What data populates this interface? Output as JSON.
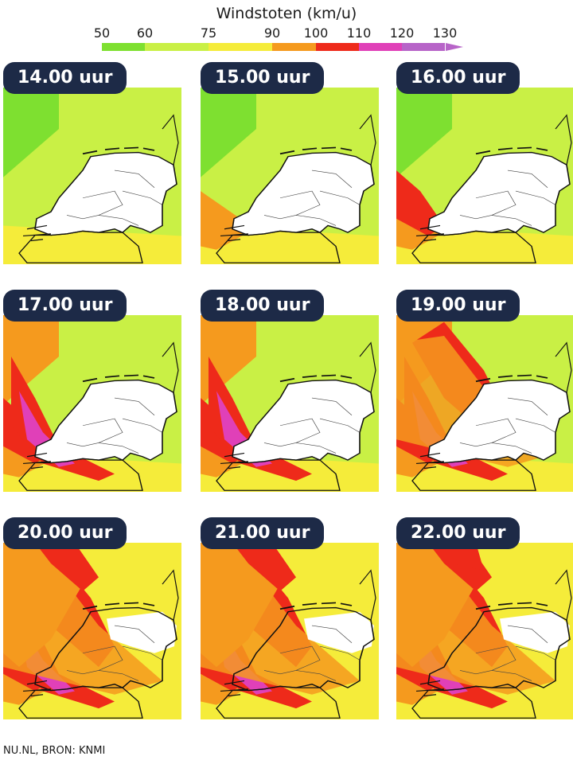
{
  "legend": {
    "title": "Windstoten (km/u)",
    "ticks": [
      "50",
      "60",
      "75",
      "90",
      "100",
      "110",
      "120",
      "130"
    ],
    "colors": [
      "#7ee030",
      "#c9f045",
      "#f5ec3a",
      "#f59a1e",
      "#ee2a1a",
      "#e040b8",
      "#b764c8"
    ]
  },
  "panels": [
    {
      "label": "14.00 uur",
      "intensity": 0
    },
    {
      "label": "15.00 uur",
      "intensity": 1
    },
    {
      "label": "16.00 uur",
      "intensity": 2
    },
    {
      "label": "17.00 uur",
      "intensity": 3
    },
    {
      "label": "18.00 uur",
      "intensity": 3
    },
    {
      "label": "19.00 uur",
      "intensity": 4
    },
    {
      "label": "20.00 uur",
      "intensity": 5
    },
    {
      "label": "21.00 uur",
      "intensity": 5
    },
    {
      "label": "22.00 uur",
      "intensity": 6
    }
  ],
  "footer": "NU.NL, BRON: KNMI"
}
